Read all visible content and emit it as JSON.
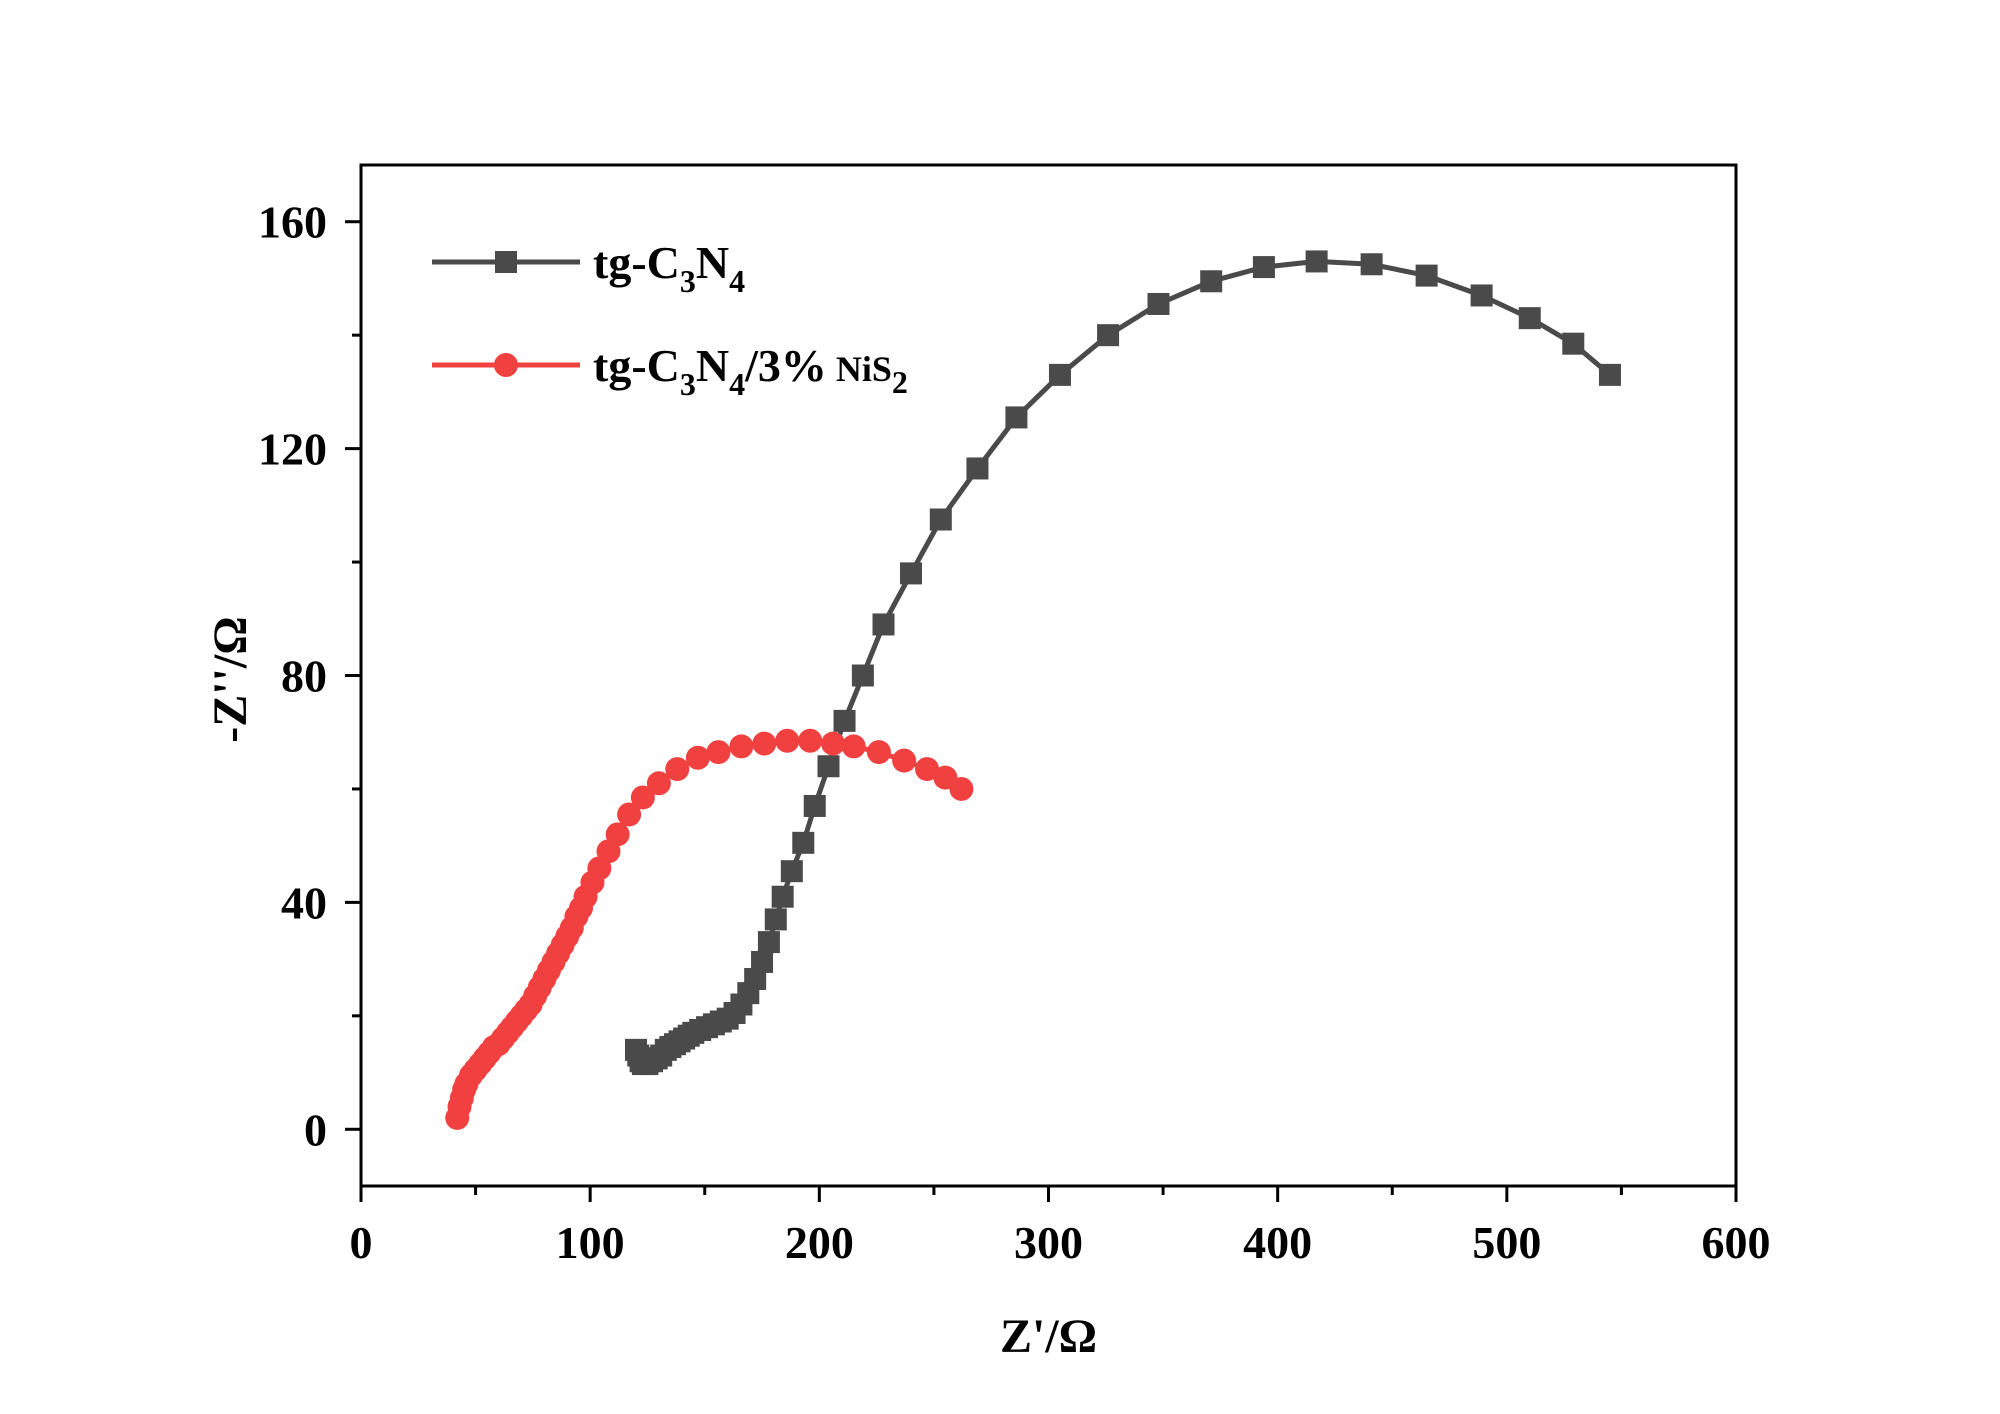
{
  "chart_data": {
    "type": "scatter",
    "title": "",
    "xlabel": "Z'/Ω",
    "ylabel": "-Z''/Ω",
    "xlim": [
      0,
      600
    ],
    "ylim": [
      -10,
      170
    ],
    "xticks": [
      0,
      100,
      200,
      300,
      400,
      500,
      600
    ],
    "yticks": [
      0,
      40,
      80,
      120,
      160
    ],
    "xtick_labels": [
      "0",
      "100",
      "200",
      "300",
      "400",
      "500",
      "600"
    ],
    "ytick_labels": [
      "0",
      "40",
      "80",
      "120",
      "160"
    ],
    "grid": false,
    "legend_position": "top-left",
    "series": [
      {
        "name": "tg-C3N4",
        "legend": {
          "base": "tg-C",
          "sub1": "3",
          "mid": "N",
          "sub2": "4",
          "tail": "",
          "tail_small": "",
          "sub3": ""
        },
        "color": "#4a4a4a",
        "marker": "square",
        "x": [
          120,
          121,
          122,
          123,
          125,
          127,
          129,
          131,
          133,
          135,
          137,
          139,
          141,
          143,
          145,
          148,
          151,
          154,
          157,
          160,
          163,
          166,
          169,
          172,
          175,
          178,
          181,
          184,
          188,
          193,
          198,
          204,
          211,
          219,
          228,
          240,
          253,
          269,
          286,
          305,
          326,
          348,
          371,
          394,
          417,
          441,
          465,
          489,
          510,
          529,
          545
        ],
        "y": [
          14,
          13,
          12,
          11.5,
          11.5,
          12,
          12.5,
          13,
          14,
          14.5,
          15,
          15.5,
          16,
          16.5,
          17,
          17.5,
          18,
          18.5,
          19,
          19.5,
          20.5,
          22,
          24,
          26.5,
          29.5,
          33,
          37,
          41,
          45.5,
          50.5,
          57,
          64,
          72,
          80,
          89,
          98,
          107.5,
          116.5,
          125.5,
          133,
          140,
          145.5,
          149.5,
          152,
          153,
          152.5,
          150.5,
          147,
          143,
          138.5,
          133
        ]
      },
      {
        "name": "tg-C3N4/3% NiS2",
        "legend": {
          "base": "tg-C",
          "sub1": "3",
          "mid": "N",
          "sub2": "4",
          "tail": "/3%",
          "tail_small": " NiS",
          "sub3": "2"
        },
        "color": "#f04040",
        "marker": "circle",
        "x": [
          42,
          43,
          44,
          45,
          46,
          48,
          50,
          52,
          54,
          56,
          58,
          60,
          62,
          64,
          66,
          68,
          70,
          72,
          74,
          76,
          78,
          80,
          82,
          84,
          86,
          88,
          90,
          92,
          94,
          96,
          98,
          101,
          104,
          108,
          112,
          117,
          123,
          130,
          138,
          147,
          156,
          166,
          176,
          186,
          196,
          206,
          215,
          226,
          237,
          247,
          255,
          262
        ],
        "y": [
          2,
          4,
          5.5,
          7,
          8,
          9.5,
          10.5,
          11.5,
          12.5,
          13.5,
          14.5,
          15,
          16,
          17,
          18,
          19,
          20,
          21,
          22,
          23.5,
          25,
          26.5,
          28,
          29.5,
          31,
          32.5,
          34,
          35.5,
          37.5,
          39,
          41,
          43.5,
          46,
          49,
          52,
          55.5,
          58.5,
          61,
          63.5,
          65.5,
          66.5,
          67.5,
          68,
          68.5,
          68.5,
          68,
          67.5,
          66.5,
          65,
          63.5,
          62,
          60
        ]
      }
    ]
  }
}
